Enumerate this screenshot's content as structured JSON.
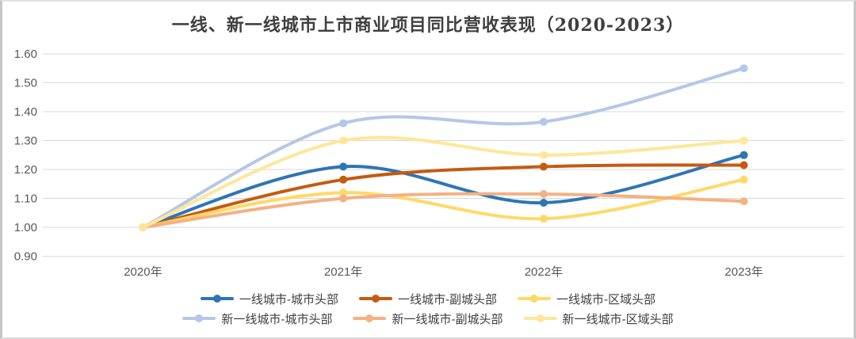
{
  "window": {
    "border_color": "#C6C6C6",
    "background_color": "#FFFFFF"
  },
  "chart_data": {
    "type": "line",
    "title": "一线、新一线城市上市商业项目同比营收表现（2020-2023）",
    "title_color": "#3F3F3F",
    "categories": [
      "2020年",
      "2021年",
      "2022年",
      "2023年"
    ],
    "series": [
      {
        "name": "一线城市-城市头部",
        "color": "#2E75B6",
        "values": [
          1.0,
          1.21,
          1.085,
          1.25
        ]
      },
      {
        "name": "一线城市-副城头部",
        "color": "#C55A11",
        "values": [
          1.0,
          1.165,
          1.21,
          1.215
        ]
      },
      {
        "name": "一线城市-区域头部",
        "color": "#FFD966",
        "values": [
          1.0,
          1.12,
          1.03,
          1.165
        ]
      },
      {
        "name": "新一线城市-城市头部",
        "color": "#B4C7E7",
        "values": [
          1.0,
          1.36,
          1.365,
          1.55
        ]
      },
      {
        "name": "新一线城市-副城头部",
        "color": "#F4B183",
        "values": [
          1.0,
          1.1,
          1.115,
          1.09
        ]
      },
      {
        "name": "新一线城市-区域头部",
        "color": "#FFE699",
        "values": [
          1.0,
          1.3,
          1.25,
          1.3
        ]
      }
    ],
    "y_ticks": [
      1.6,
      1.5,
      1.4,
      1.3,
      1.2,
      1.1,
      1.0,
      0.9
    ],
    "y_tick_labels": [
      "1.60",
      "1.50",
      "1.40",
      "1.30",
      "1.20",
      "1.10",
      "1.00",
      "0.90"
    ],
    "ylim": [
      0.9,
      1.6
    ],
    "xlabel": "",
    "ylabel": "",
    "grid": true,
    "grid_color": "#D9D9D9",
    "axis_label_color": "#595959",
    "legend_text_color": "#404040",
    "legend_position": "bottom",
    "legend_rows": [
      [
        0,
        1,
        2
      ],
      [
        3,
        4,
        5
      ]
    ],
    "smoothed": true,
    "marker": "circle"
  }
}
